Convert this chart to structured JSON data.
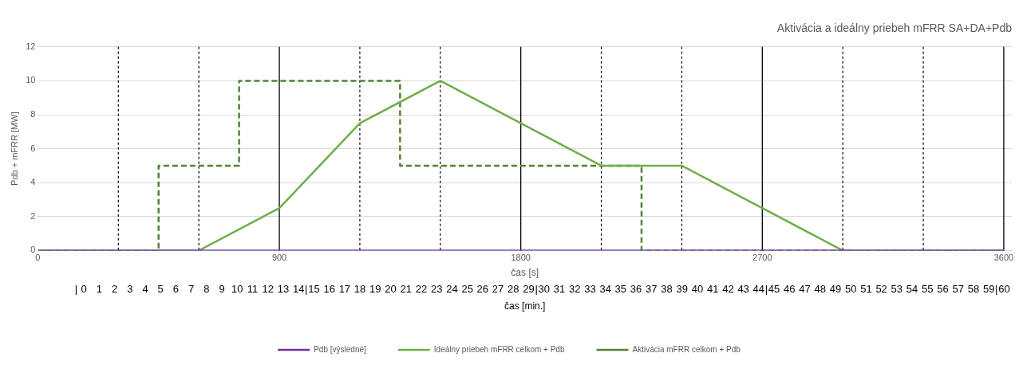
{
  "chart_data": {
    "type": "line",
    "title": "Aktivácia a ideálny priebeh mFRR SA+DA+Pdb",
    "xlabel": "čas [s]",
    "ylabel": "Pdb + mFRR [MW]",
    "x2label": "čas [min.]",
    "xlim": [
      0,
      3630
    ],
    "xticks": [
      0,
      900,
      1800,
      2700,
      3600
    ],
    "x2lim": [
      -3,
      60.5
    ],
    "x2ticks": [
      {
        "value": -0.5,
        "label": "|"
      },
      0,
      1,
      2,
      3,
      4,
      5,
      6,
      7,
      8,
      9,
      10,
      11,
      12,
      13,
      14,
      {
        "value": 14.5,
        "label": "|"
      },
      15,
      16,
      17,
      18,
      19,
      20,
      21,
      22,
      23,
      24,
      25,
      26,
      27,
      28,
      29,
      {
        "value": 29.5,
        "label": "|"
      },
      30,
      31,
      32,
      33,
      34,
      35,
      36,
      37,
      38,
      39,
      40,
      41,
      42,
      43,
      44,
      {
        "value": 44.5,
        "label": "|"
      },
      45,
      46,
      47,
      48,
      49,
      50,
      51,
      52,
      53,
      54,
      55,
      56,
      57,
      58,
      59,
      {
        "value": 59.5,
        "label": "|"
      },
      60
    ],
    "ylim": [
      0,
      12
    ],
    "yticks": [
      0,
      2,
      4,
      6,
      8,
      10,
      12
    ],
    "grid": "y",
    "legend": "bottom",
    "marker": "none",
    "series": [
      {
        "name": "Pdb [výsledné]",
        "color": "#7030a0",
        "x": [
          0,
          3600
        ],
        "values": [
          0,
          0
        ]
      },
      {
        "name": "Ideálny priebeh mFRR celkom + Pdb",
        "color": "#70ad47",
        "x": [
          0,
          600,
          900,
          1200,
          1500,
          2100,
          2400,
          2700,
          3000,
          3600
        ],
        "values": [
          0,
          0,
          2.5,
          7.5,
          10,
          5,
          5,
          2.5,
          0,
          0
        ]
      },
      {
        "name": "Aktivácia mFRR celkom + Pdb",
        "type": "step",
        "line_style": "dashed",
        "color": "#548235",
        "x": [
          0,
          450,
          750,
          1350,
          2250,
          3600
        ],
        "values": [
          0,
          5,
          10,
          5,
          0,
          0
        ]
      }
    ],
    "ref_lines": [
      {
        "axis": "x",
        "value": 300,
        "line_style": "dotted",
        "color": "#000000"
      },
      {
        "axis": "x",
        "value": 600,
        "line_style": "dotted",
        "color": "#000000"
      },
      {
        "axis": "x",
        "value": 900,
        "line_style": "solid",
        "color": "#000000"
      },
      {
        "axis": "x",
        "value": 1200,
        "line_style": "dotted",
        "color": "#000000"
      },
      {
        "axis": "x",
        "value": 1500,
        "line_style": "dotted",
        "color": "#000000"
      },
      {
        "axis": "x",
        "value": 1800,
        "line_style": "solid",
        "color": "#000000"
      },
      {
        "axis": "x",
        "value": 2100,
        "line_style": "dotted",
        "color": "#000000"
      },
      {
        "axis": "x",
        "value": 2400,
        "line_style": "dotted",
        "color": "#000000"
      },
      {
        "axis": "x",
        "value": 2700,
        "line_style": "solid",
        "color": "#000000"
      },
      {
        "axis": "x",
        "value": 3000,
        "line_style": "dotted",
        "color": "#000000"
      },
      {
        "axis": "x",
        "value": 3300,
        "line_style": "dotted",
        "color": "#000000"
      },
      {
        "axis": "x",
        "value": 3600,
        "line_style": "solid",
        "color": "#000000"
      }
    ]
  }
}
